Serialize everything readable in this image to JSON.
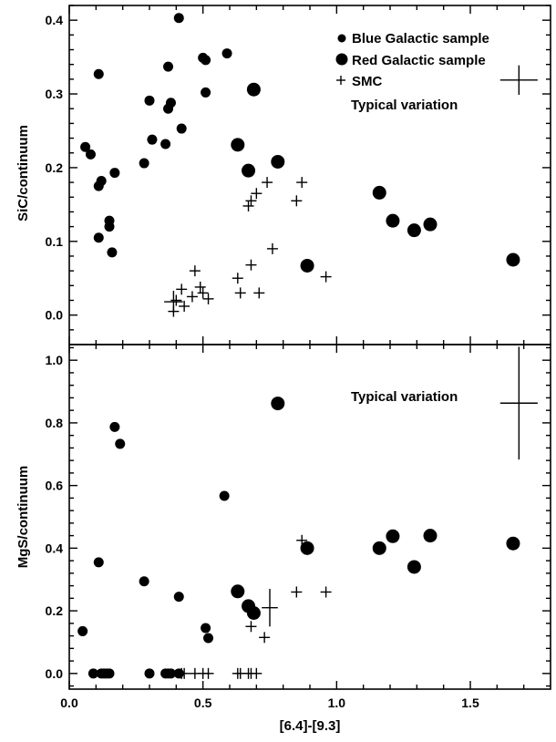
{
  "chart_data": [
    {
      "type": "scatter",
      "panel": "top",
      "xlabel": "",
      "ylabel": "SiC/continuum",
      "xlim": [
        0.0,
        1.8
      ],
      "ylim": [
        -0.04,
        0.42
      ],
      "xticks": [
        "",
        "",
        "",
        ""
      ],
      "yticks": [
        "0.0",
        "0.1",
        "0.2",
        "0.3",
        "0.4"
      ],
      "legend_position": "top-right",
      "series": [
        {
          "name": "Blue Galactic sample",
          "marker": "small-filled-circle",
          "points": [
            [
              0.06,
              0.228
            ],
            [
              0.08,
              0.218
            ],
            [
              0.11,
              0.327
            ],
            [
              0.11,
              0.175
            ],
            [
              0.12,
              0.182
            ],
            [
              0.11,
              0.105
            ],
            [
              0.15,
              0.128
            ],
            [
              0.15,
              0.12
            ],
            [
              0.16,
              0.085
            ],
            [
              0.17,
              0.193
            ],
            [
              0.28,
              0.206
            ],
            [
              0.3,
              0.291
            ],
            [
              0.31,
              0.238
            ],
            [
              0.36,
              0.232
            ],
            [
              0.37,
              0.337
            ],
            [
              0.37,
              0.28
            ],
            [
              0.38,
              0.288
            ],
            [
              0.41,
              0.403
            ],
            [
              0.42,
              0.253
            ],
            [
              0.5,
              0.349
            ],
            [
              0.51,
              0.302
            ],
            [
              0.51,
              0.346
            ],
            [
              0.59,
              0.355
            ]
          ]
        },
        {
          "name": "Red Galactic sample",
          "marker": "large-filled-circle",
          "points": [
            [
              0.63,
              0.231
            ],
            [
              0.67,
              0.196
            ],
            [
              0.69,
              0.306
            ],
            [
              0.78,
              0.208
            ],
            [
              0.89,
              0.067
            ],
            [
              1.16,
              0.166
            ],
            [
              1.21,
              0.128
            ],
            [
              1.29,
              0.115
            ],
            [
              1.35,
              0.123
            ],
            [
              1.66,
              0.075
            ]
          ]
        },
        {
          "name": "SMC",
          "marker": "plus",
          "points": [
            [
              0.39,
              0.005
            ],
            [
              0.4,
              0.02
            ],
            [
              0.42,
              0.035
            ],
            [
              0.43,
              0.012
            ],
            [
              0.46,
              0.025
            ],
            [
              0.47,
              0.06
            ],
            [
              0.49,
              0.038
            ],
            [
              0.5,
              0.03
            ],
            [
              0.52,
              0.022
            ],
            [
              0.63,
              0.05
            ],
            [
              0.64,
              0.03
            ],
            [
              0.67,
              0.148
            ],
            [
              0.68,
              0.068
            ],
            [
              0.68,
              0.155
            ],
            [
              0.7,
              0.165
            ],
            [
              0.71,
              0.03
            ],
            [
              0.74,
              0.18
            ],
            [
              0.76,
              0.09
            ],
            [
              0.85,
              0.155
            ],
            [
              0.87,
              0.18
            ],
            [
              0.96,
              0.052
            ]
          ]
        }
      ],
      "error_markers": [
        {
          "x": 0.39,
          "y": 0.018,
          "xerr": 0.035,
          "yerr": 0.015
        }
      ],
      "annotations": [
        {
          "text": "Typical variation",
          "position": "upper-right",
          "xerr": 0.07,
          "yerr": 0.02
        }
      ]
    },
    {
      "type": "scatter",
      "panel": "bottom",
      "xlabel": "[6.4]-[9.3]",
      "ylabel": "MgS/continuum",
      "xlim": [
        0.0,
        1.8
      ],
      "ylim": [
        -0.05,
        1.05
      ],
      "xticks": [
        "0.0",
        "0.5",
        "1.0",
        "1.5"
      ],
      "yticks": [
        "0.0",
        "0.2",
        "0.4",
        "0.6",
        "0.8",
        "1.0"
      ],
      "series": [
        {
          "name": "Blue Galactic sample",
          "marker": "small-filled-circle",
          "points": [
            [
              0.05,
              0.135
            ],
            [
              0.09,
              0.0
            ],
            [
              0.11,
              0.355
            ],
            [
              0.12,
              0.0
            ],
            [
              0.13,
              0.0
            ],
            [
              0.14,
              0.0
            ],
            [
              0.15,
              0.0
            ],
            [
              0.17,
              0.787
            ],
            [
              0.19,
              0.733
            ],
            [
              0.28,
              0.294
            ],
            [
              0.3,
              0.0
            ],
            [
              0.36,
              0.0
            ],
            [
              0.37,
              0.0
            ],
            [
              0.38,
              0.0
            ],
            [
              0.41,
              0.0
            ],
            [
              0.41,
              0.245
            ],
            [
              0.51,
              0.145
            ],
            [
              0.52,
              0.113
            ],
            [
              0.58,
              0.567
            ]
          ]
        },
        {
          "name": "Red Galactic sample",
          "marker": "large-filled-circle",
          "points": [
            [
              0.63,
              0.262
            ],
            [
              0.67,
              0.215
            ],
            [
              0.69,
              0.193
            ],
            [
              0.78,
              0.862
            ],
            [
              0.89,
              0.4
            ],
            [
              1.16,
              0.4
            ],
            [
              1.21,
              0.438
            ],
            [
              1.29,
              0.34
            ],
            [
              1.35,
              0.44
            ],
            [
              1.66,
              0.415
            ]
          ]
        },
        {
          "name": "SMC",
          "marker": "plus",
          "points": [
            [
              0.42,
              0.0
            ],
            [
              0.43,
              0.0
            ],
            [
              0.47,
              0.0
            ],
            [
              0.5,
              0.0
            ],
            [
              0.52,
              0.0
            ],
            [
              0.63,
              0.0
            ],
            [
              0.64,
              0.0
            ],
            [
              0.67,
              0.0
            ],
            [
              0.68,
              0.0
            ],
            [
              0.7,
              0.0
            ],
            [
              0.68,
              0.15
            ],
            [
              0.73,
              0.115
            ],
            [
              0.85,
              0.26
            ],
            [
              0.87,
              0.425
            ],
            [
              0.96,
              0.26
            ]
          ]
        }
      ],
      "error_markers": [
        {
          "x": 0.75,
          "y": 0.21,
          "xerr": 0.03,
          "yerr": 0.06
        }
      ],
      "annotations": [
        {
          "text": "Typical variation",
          "position": "upper-right",
          "xerr": 0.07,
          "yerr": 0.18
        }
      ]
    }
  ]
}
